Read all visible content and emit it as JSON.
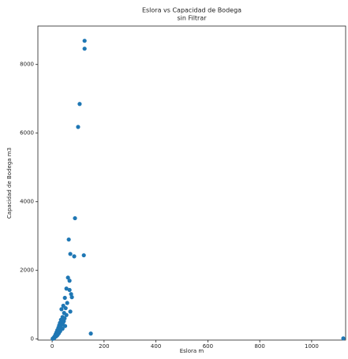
{
  "chart_data": {
    "type": "scatter",
    "title": "Eslora vs Capacidad de Bodega",
    "subtitle": "sin Filtrar",
    "x_label": "Eslora m",
    "y_label": "Capacidad de Bodega m3",
    "color": "#1f77b4",
    "grid": false,
    "xlim": [
      -55,
      1131
    ],
    "ylim": [
      -30,
      9120
    ],
    "xticks": [
      0,
      200,
      400,
      600,
      800,
      1000
    ],
    "yticks": [
      0,
      2000,
      4000,
      6000,
      8000
    ],
    "x": [
      125,
      125,
      106,
      100,
      88,
      64,
      70,
      85,
      122,
      61,
      67,
      55,
      67,
      73,
      76,
      70,
      149,
      1122,
      49,
      43,
      36,
      58,
      52,
      46,
      40,
      34,
      30,
      27,
      24,
      20,
      17,
      14,
      12,
      9,
      6,
      4,
      2,
      55,
      48,
      42,
      38,
      33,
      28,
      25,
      22,
      18,
      15,
      11,
      8,
      45,
      50,
      40,
      31,
      26,
      21,
      16,
      10,
      5
    ],
    "y": [
      8690,
      8460,
      6850,
      6180,
      3520,
      2900,
      2480,
      2410,
      2440,
      1790,
      1700,
      1470,
      1430,
      1310,
      1220,
      800,
      160,
      20,
      1200,
      970,
      870,
      1050,
      900,
      760,
      640,
      560,
      470,
      400,
      330,
      260,
      200,
      150,
      110,
      70,
      40,
      20,
      10,
      700,
      600,
      480,
      420,
      350,
      290,
      240,
      190,
      140,
      100,
      60,
      30,
      520,
      380,
      300,
      230,
      170,
      120,
      80,
      50,
      15
    ]
  }
}
